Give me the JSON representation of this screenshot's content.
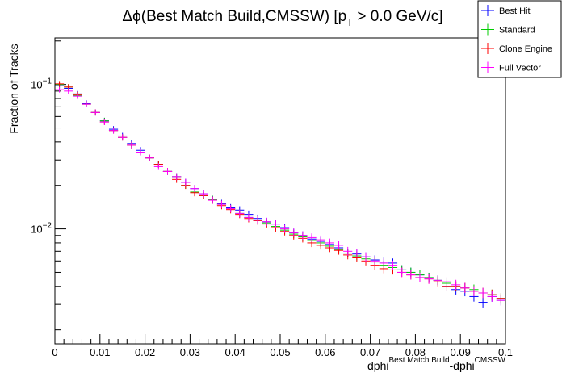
{
  "chart_data": {
    "type": "scatter",
    "title_main": "Δϕ(Best Match Build,CMSSW) [p",
    "title_sub": "T",
    "title_tail": " > 0.0 GeV/c]",
    "ylabel": "Fraction of Tracks",
    "xlabel_main": "dphi",
    "xlabel_sup1": "Best Match Build",
    "xlabel_mid": "-dphi",
    "xlabel_sup2": "CMSSW",
    "x_range": [
      0,
      0.1
    ],
    "y_range": [
      0.0016,
      0.21
    ],
    "y_scale": "log",
    "x_ticks": [
      {
        "v": 0,
        "label": "0"
      },
      {
        "v": 0.01,
        "label": "0.01"
      },
      {
        "v": 0.02,
        "label": "0.02"
      },
      {
        "v": 0.03,
        "label": "0.03"
      },
      {
        "v": 0.04,
        "label": "0.04"
      },
      {
        "v": 0.05,
        "label": "0.05"
      },
      {
        "v": 0.06,
        "label": "0.06"
      },
      {
        "v": 0.07,
        "label": "0.07"
      },
      {
        "v": 0.08,
        "label": "0.08"
      },
      {
        "v": 0.09,
        "label": "0.09"
      },
      {
        "v": 0.1,
        "label": "0.1"
      }
    ],
    "y_ticks": [
      {
        "v": 0.1,
        "base": "10",
        "exp": "−1"
      },
      {
        "v": 0.01,
        "base": "10",
        "exp": "−2"
      }
    ],
    "bin_width": 0.002,
    "bin_x_start": 0.001,
    "legend_position": "top-right",
    "series": [
      {
        "name": "Best Hit",
        "color": "#0000ff",
        "values": [
          0.098,
          0.094,
          0.086,
          0.074,
          0.064,
          0.056,
          0.049,
          0.044,
          0.039,
          0.035,
          0.031,
          0.028,
          0.025,
          0.023,
          0.021,
          0.019,
          0.0175,
          0.016,
          0.015,
          0.014,
          0.0135,
          0.0126,
          0.0118,
          0.0112,
          0.0108,
          0.0102,
          0.0094,
          0.009,
          0.0085,
          0.0082,
          0.0078,
          0.0074,
          0.0068,
          0.0067,
          0.0064,
          0.0061,
          0.0059,
          0.0058,
          0.0052,
          0.005,
          0.0048,
          0.0046,
          0.0044,
          0.004,
          0.0038,
          0.0037,
          0.0034,
          0.0031,
          0.0034,
          0.0032
        ]
      },
      {
        "name": "Standard",
        "color": "#00cc00",
        "values": [
          0.1,
          0.096,
          0.084,
          0.073,
          0.064,
          0.056,
          0.048,
          0.043,
          0.038,
          0.034,
          0.031,
          0.028,
          0.025,
          0.023,
          0.02,
          0.018,
          0.017,
          0.016,
          0.0148,
          0.0138,
          0.0128,
          0.012,
          0.0114,
          0.011,
          0.0104,
          0.0098,
          0.0092,
          0.0088,
          0.0083,
          0.008,
          0.0076,
          0.0072,
          0.0068,
          0.0065,
          0.0062,
          0.0059,
          0.0056,
          0.0054,
          0.0052,
          0.005,
          0.0048,
          0.0046,
          0.0044,
          0.0042,
          0.004,
          0.0039,
          0.0038,
          0.0036,
          0.0035,
          0.0033
        ]
      },
      {
        "name": "Clone Engine",
        "color": "#ff0000",
        "values": [
          0.101,
          0.096,
          0.085,
          0.073,
          0.064,
          0.055,
          0.048,
          0.043,
          0.038,
          0.034,
          0.031,
          0.028,
          0.025,
          0.022,
          0.02,
          0.0178,
          0.017,
          0.0158,
          0.0145,
          0.0136,
          0.0126,
          0.0118,
          0.0114,
          0.0108,
          0.0102,
          0.0096,
          0.009,
          0.0086,
          0.008,
          0.0077,
          0.0074,
          0.0071,
          0.0066,
          0.0063,
          0.006,
          0.0056,
          0.0053,
          0.0052,
          0.005,
          0.0048,
          0.0046,
          0.0045,
          0.0043,
          0.004,
          0.004,
          0.0039,
          0.0037,
          0.0036,
          0.0035,
          0.0033
        ]
      },
      {
        "name": "Full Vector",
        "color": "#ff00ff",
        "values": [
          0.092,
          0.09,
          0.083,
          0.073,
          0.064,
          0.055,
          0.048,
          0.043,
          0.038,
          0.034,
          0.031,
          0.027,
          0.025,
          0.023,
          0.021,
          0.019,
          0.0175,
          0.0158,
          0.0148,
          0.0138,
          0.0128,
          0.012,
          0.0115,
          0.0112,
          0.0108,
          0.01,
          0.0094,
          0.009,
          0.0087,
          0.0084,
          0.008,
          0.0077,
          0.007,
          0.0068,
          0.0064,
          0.006,
          0.0058,
          0.0056,
          0.005,
          0.0048,
          0.0046,
          0.0045,
          0.0044,
          0.0043,
          0.0041,
          0.0039,
          0.0037,
          0.0036,
          0.0034,
          0.0032
        ]
      }
    ]
  }
}
